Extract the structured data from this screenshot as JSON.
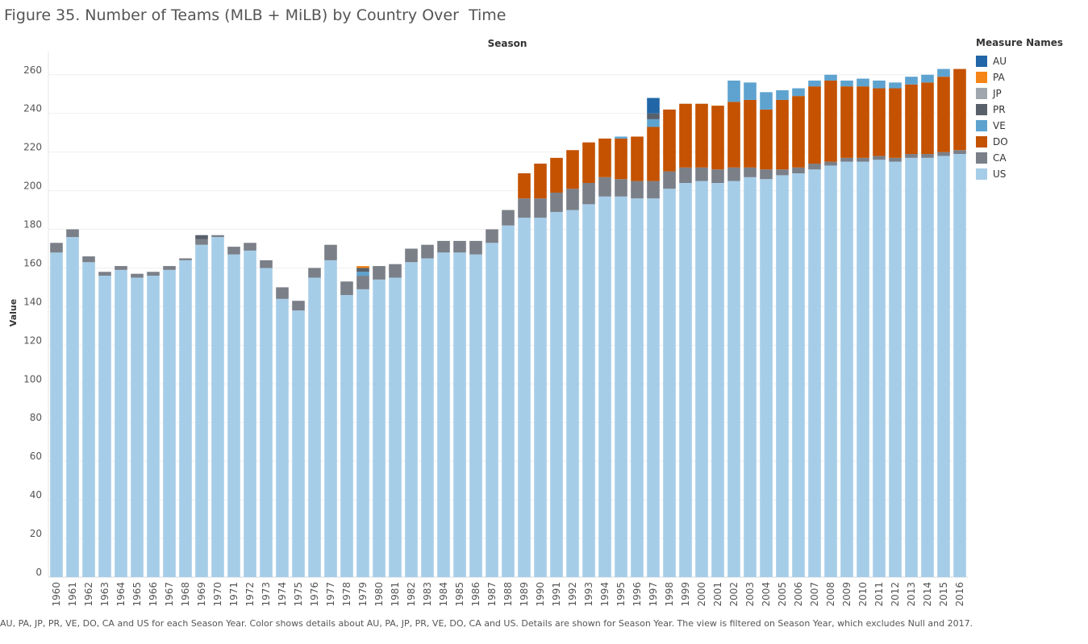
{
  "chart_data": {
    "type": "bar",
    "stacked": true,
    "title": "Figure 35. Number of Teams (MLB + MiLB) by Country Over  Time",
    "top_axis_label": "Season",
    "ylabel": "Value",
    "ylim": [
      0,
      272
    ],
    "yticks": [
      0,
      20,
      40,
      60,
      80,
      100,
      120,
      140,
      160,
      180,
      200,
      220,
      240,
      260
    ],
    "grid": true,
    "legend_title": "Measure Names",
    "legend_position": "right",
    "legend_order": [
      "AU",
      "PA",
      "JP",
      "PR",
      "VE",
      "DO",
      "CA",
      "US"
    ],
    "stack_order": [
      "US",
      "CA",
      "DO",
      "VE",
      "PR",
      "JP",
      "PA",
      "AU"
    ],
    "colors": {
      "AU": "#2166a6",
      "PA": "#f58518",
      "JP": "#a0a6ad",
      "PR": "#58606b",
      "VE": "#5ea3d0",
      "DO": "#c45200",
      "CA": "#7a7f88",
      "US": "#a6cde8"
    },
    "categories": [
      "1960",
      "1961",
      "1962",
      "1963",
      "1964",
      "1965",
      "1966",
      "1967",
      "1968",
      "1969",
      "1970",
      "1971",
      "1972",
      "1973",
      "1974",
      "1975",
      "1976",
      "1977",
      "1978",
      "1979",
      "1980",
      "1981",
      "1982",
      "1983",
      "1984",
      "1985",
      "1986",
      "1987",
      "1988",
      "1989",
      "1990",
      "1991",
      "1992",
      "1993",
      "1994",
      "1995",
      "1996",
      "1997",
      "1998",
      "1999",
      "2000",
      "2001",
      "2002",
      "2003",
      "2004",
      "2005",
      "2006",
      "2007",
      "2008",
      "2009",
      "2010",
      "2011",
      "2012",
      "2013",
      "2014",
      "2015",
      "2016"
    ],
    "series": [
      {
        "name": "US",
        "values": [
          168,
          176,
          163,
          156,
          159,
          155,
          156,
          159,
          164,
          172,
          176,
          167,
          169,
          160,
          144,
          138,
          155,
          164,
          146,
          149,
          154,
          155,
          163,
          165,
          168,
          168,
          167,
          173,
          182,
          186,
          186,
          189,
          190,
          193,
          197,
          197,
          196,
          196,
          201,
          204,
          205,
          204,
          205,
          207,
          206,
          208,
          209,
          211,
          213,
          215,
          215,
          216,
          215,
          217,
          217,
          218,
          219
        ]
      },
      {
        "name": "CA",
        "values": [
          5,
          4,
          3,
          2,
          2,
          2,
          2,
          2,
          1,
          3,
          1,
          4,
          4,
          4,
          6,
          5,
          5,
          8,
          7,
          7,
          7,
          7,
          7,
          7,
          6,
          6,
          7,
          7,
          8,
          10,
          10,
          10,
          11,
          11,
          10,
          9,
          9,
          9,
          9,
          8,
          7,
          7,
          7,
          5,
          5,
          3,
          3,
          3,
          2,
          2,
          2,
          2,
          2,
          2,
          2,
          2,
          2
        ]
      },
      {
        "name": "DO",
        "values": [
          0,
          0,
          0,
          0,
          0,
          0,
          0,
          0,
          0,
          0,
          0,
          0,
          0,
          0,
          0,
          0,
          0,
          0,
          0,
          0,
          0,
          0,
          0,
          0,
          0,
          0,
          0,
          0,
          0,
          13,
          18,
          18,
          20,
          21,
          20,
          21,
          23,
          28,
          32,
          33,
          33,
          33,
          34,
          35,
          31,
          36,
          37,
          40,
          42,
          37,
          37,
          35,
          36,
          36,
          37,
          39,
          42
        ]
      },
      {
        "name": "VE",
        "values": [
          0,
          0,
          0,
          0,
          0,
          0,
          0,
          0,
          0,
          0,
          0,
          0,
          0,
          0,
          0,
          0,
          0,
          0,
          0,
          2,
          0,
          0,
          0,
          0,
          0,
          0,
          0,
          0,
          0,
          0,
          0,
          0,
          0,
          0,
          0,
          1,
          0,
          4,
          0,
          0,
          0,
          0,
          11,
          9,
          9,
          5,
          4,
          3,
          3,
          3,
          4,
          4,
          3,
          4,
          4,
          4,
          0
        ]
      },
      {
        "name": "PR",
        "values": [
          0,
          0,
          0,
          0,
          0,
          0,
          0,
          0,
          0,
          2,
          0,
          0,
          0,
          0,
          0,
          0,
          0,
          0,
          0,
          2,
          0,
          0,
          0,
          0,
          0,
          0,
          0,
          0,
          0,
          0,
          0,
          0,
          0,
          0,
          0,
          0,
          0,
          3,
          0,
          0,
          0,
          0,
          0,
          0,
          0,
          0,
          0,
          0,
          0,
          0,
          0,
          0,
          0,
          0,
          0,
          0,
          0
        ]
      },
      {
        "name": "JP",
        "values": [
          0,
          0,
          0,
          0,
          0,
          0,
          0,
          0,
          0,
          0,
          0,
          0,
          0,
          0,
          0,
          0,
          0,
          0,
          0,
          0,
          0,
          0,
          0,
          0,
          0,
          0,
          0,
          0,
          0,
          0,
          0,
          0,
          0,
          0,
          0,
          0,
          0,
          0,
          0,
          0,
          0,
          0,
          0,
          0,
          0,
          0,
          0,
          0,
          0,
          0,
          0,
          0,
          0,
          0,
          0,
          0,
          0
        ]
      },
      {
        "name": "PA",
        "values": [
          0,
          0,
          0,
          0,
          0,
          0,
          0,
          0,
          0,
          0,
          0,
          0,
          0,
          0,
          0,
          0,
          0,
          0,
          0,
          1,
          0,
          0,
          0,
          0,
          0,
          0,
          0,
          0,
          0,
          0,
          0,
          0,
          0,
          0,
          0,
          0,
          0,
          0,
          0,
          0,
          0,
          0,
          0,
          0,
          0,
          0,
          0,
          0,
          0,
          0,
          0,
          0,
          0,
          0,
          0,
          0,
          0
        ]
      },
      {
        "name": "AU",
        "values": [
          0,
          0,
          0,
          0,
          0,
          0,
          0,
          0,
          0,
          0,
          0,
          0,
          0,
          0,
          0,
          0,
          0,
          0,
          0,
          0,
          0,
          0,
          0,
          0,
          0,
          0,
          0,
          0,
          0,
          0,
          0,
          0,
          0,
          0,
          0,
          0,
          0,
          8,
          0,
          0,
          0,
          0,
          0,
          0,
          0,
          0,
          0,
          0,
          0,
          0,
          0,
          0,
          0,
          0,
          0,
          0,
          0
        ]
      }
    ]
  },
  "caption": "AU, PA, JP, PR, VE, DO, CA and US for each Season Year.  Color shows details about AU, PA, JP, PR, VE, DO, CA and US.  Details are shown for Season Year. The view is filtered on Season Year, which excludes Null and 2017."
}
